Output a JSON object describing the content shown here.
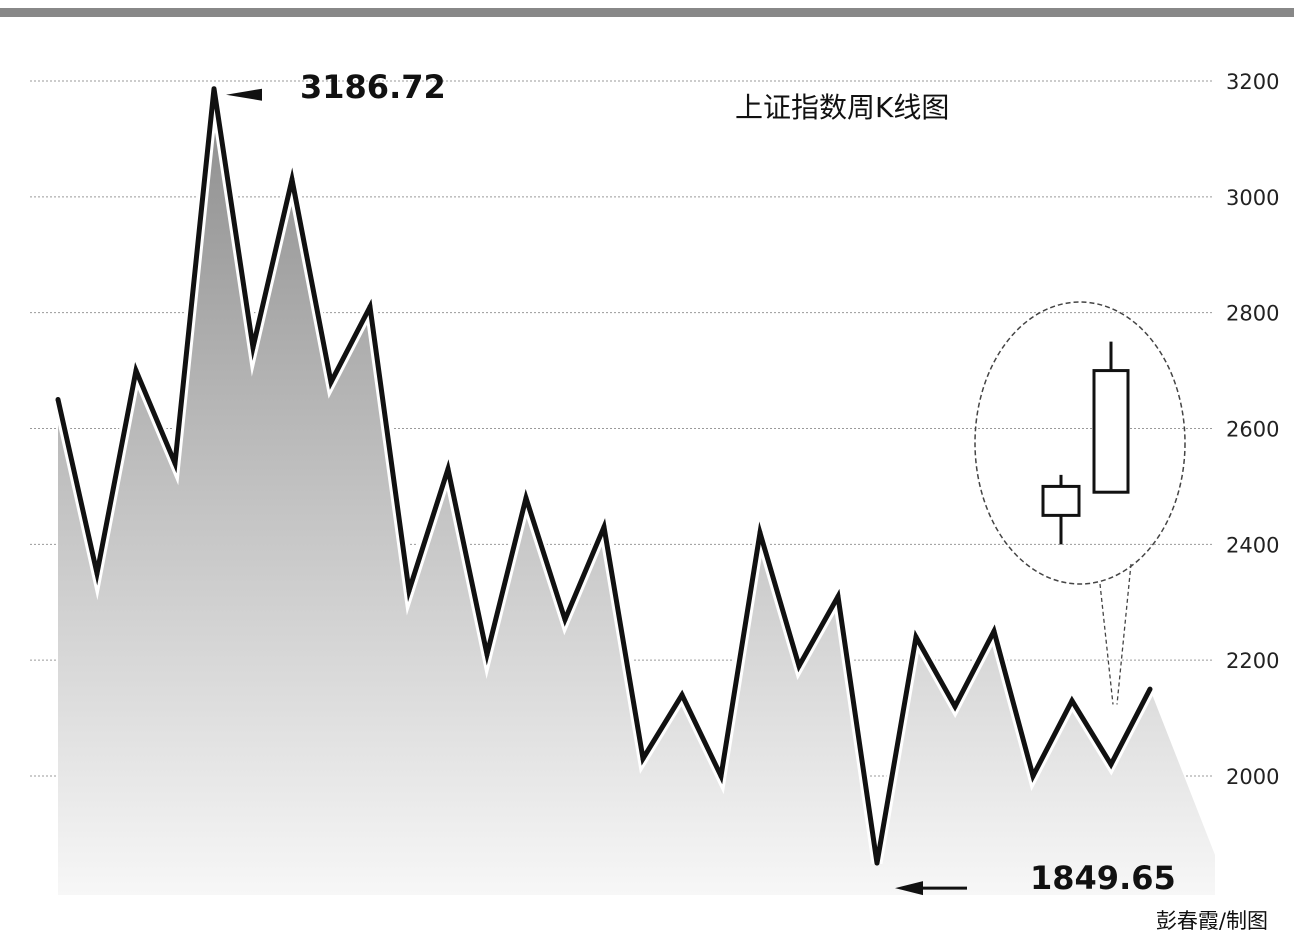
{
  "chart_data": {
    "type": "line",
    "title": "上证指数周K线图",
    "credit": "彭春霞/制图",
    "y_axis": {
      "ylim": [
        1800,
        3250
      ],
      "ticks": [
        2000,
        2200,
        2400,
        2600,
        2800,
        3000,
        3200
      ],
      "position": "right"
    },
    "grid": true,
    "series": [
      {
        "values": [
          2650,
          2350,
          2700,
          2540,
          3186.72,
          2740,
          3030,
          2680,
          2810,
          2320,
          2530,
          2210,
          2480,
          2270,
          2430,
          2030,
          2140,
          2000,
          2420,
          2190,
          2310,
          1849.65,
          2240,
          2120,
          2250,
          2000,
          2130,
          2020,
          2150
        ]
      }
    ],
    "annotations": [
      {
        "label": "3186.72",
        "value": 3186.72
      },
      {
        "label": "1849.65",
        "value": 1849.65
      }
    ],
    "inset_candles": [
      {
        "open": 2450,
        "close": 2500,
        "high": 2520,
        "low": 2400
      },
      {
        "open": 2490,
        "close": 2700,
        "high": 2750,
        "low": 2490
      }
    ],
    "colors": {
      "line": "#111111",
      "area_top": "#8c8c8c",
      "area_bottom": "#f7f7f7",
      "grid": "#9a9a9a",
      "top_bar": "#888888"
    }
  }
}
